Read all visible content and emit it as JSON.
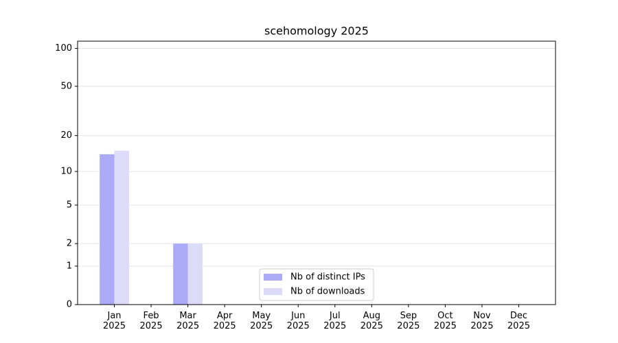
{
  "chart_data": {
    "type": "bar",
    "title": "scehomology 2025",
    "categories": [
      "Jan 2025",
      "Feb 2025",
      "Mar 2025",
      "Apr 2025",
      "May 2025",
      "Jun 2025",
      "Jul 2025",
      "Aug 2025",
      "Sep 2025",
      "Oct 2025",
      "Nov 2025",
      "Dec 2025"
    ],
    "series": [
      {
        "name": "Nb of distinct IPs",
        "color": "#aaaaf8",
        "values": [
          14,
          0,
          2,
          0,
          0,
          0,
          0,
          0,
          0,
          0,
          0,
          0
        ]
      },
      {
        "name": "Nb of downloads",
        "color": "#dcdcf9",
        "values": [
          15,
          0,
          2,
          0,
          0,
          0,
          0,
          0,
          0,
          0,
          0,
          0
        ]
      }
    ],
    "yscale": "log1p",
    "ylim": [
      0,
      114
    ],
    "yticks": [
      0,
      1,
      2,
      5,
      10,
      20,
      50,
      100
    ],
    "grid": true,
    "legend": "lower center"
  }
}
